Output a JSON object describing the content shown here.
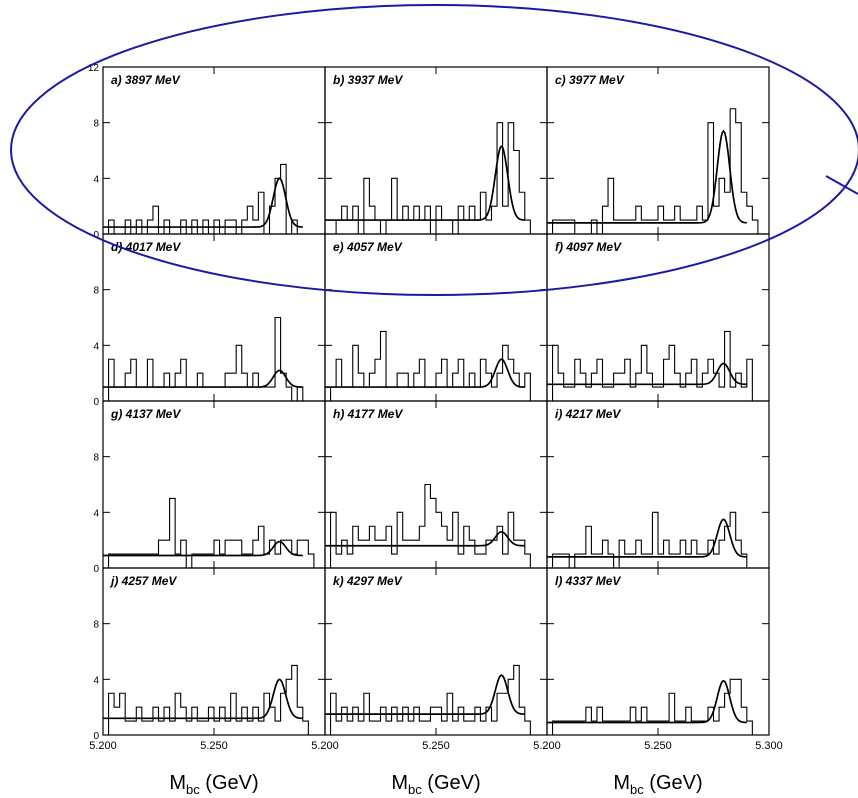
{
  "chart_data": {
    "type": "histogram-grid",
    "rows": 4,
    "cols": 3,
    "xlim": [
      5.2,
      5.3
    ],
    "ylim": [
      0,
      12
    ],
    "x_tick_labels": [
      [
        "5.200",
        "5.250",
        "5.200"
      ],
      [
        "5.250",
        "5.200",
        "5.250"
      ],
      [
        "5.300"
      ]
    ],
    "x_tick_values": [
      5.2,
      5.25,
      5.3
    ],
    "y_tick_labels": [
      "0",
      "4",
      "8",
      "12"
    ],
    "y_tick_values": [
      0,
      4,
      8,
      12
    ],
    "xlabel_main": "M",
    "xlabel_sub": "bc",
    "xlabel_unit": " (GeV)",
    "bin_width": 0.0025,
    "bin_start": 5.2,
    "annotation": "blue ellipse highlighting top row",
    "panels": [
      {
        "label": "a) 3897 MeV",
        "counts": [
          0,
          1,
          0,
          0,
          1,
          0,
          1,
          0,
          1,
          2,
          0,
          1,
          0,
          0,
          1,
          0,
          1,
          0,
          1,
          0,
          1,
          0,
          1,
          1,
          0,
          1,
          2,
          1,
          3,
          0,
          2,
          4,
          5,
          0,
          1,
          0,
          0,
          0,
          0,
          0
        ],
        "fit": {
          "bg": 0.5,
          "amp": 3.5,
          "mu": 5.2795,
          "sigma": 0.0028
        }
      },
      {
        "label": "b) 3937 MeV",
        "counts": [
          0,
          0,
          1,
          2,
          1,
          2,
          0,
          4,
          2,
          1,
          0,
          1,
          4,
          1,
          2,
          1,
          2,
          1,
          2,
          0,
          2,
          1,
          1,
          0,
          2,
          1,
          2,
          1,
          3,
          1,
          2,
          8,
          2,
          8,
          6,
          3,
          1,
          0,
          0,
          0
        ],
        "fit": {
          "bg": 1.0,
          "amp": 5.3,
          "mu": 5.2795,
          "sigma": 0.0028
        }
      },
      {
        "label": "c) 3977 MeV",
        "counts": [
          0,
          1,
          1,
          1,
          1,
          0,
          0,
          0,
          1,
          0,
          2,
          4,
          1,
          1,
          1,
          1,
          2,
          1,
          1,
          1,
          2,
          1,
          1,
          2,
          1,
          1,
          1,
          2,
          1,
          8,
          2,
          4,
          3,
          9,
          8,
          3,
          2,
          1,
          0,
          0
        ],
        "fit": {
          "bg": 0.8,
          "amp": 6.6,
          "mu": 5.2795,
          "sigma": 0.0028
        }
      },
      {
        "label": "d) 4017 MeV",
        "counts": [
          0,
          3,
          1,
          1,
          2,
          3,
          1,
          1,
          3,
          1,
          1,
          2,
          1,
          2,
          3,
          1,
          1,
          2,
          1,
          1,
          1,
          1,
          2,
          2,
          4,
          2,
          1,
          2,
          1,
          1,
          1,
          6,
          2,
          1,
          0,
          1,
          0,
          0,
          0,
          0
        ],
        "fit": {
          "bg": 1.0,
          "amp": 1.2,
          "mu": 5.2795,
          "sigma": 0.0028
        }
      },
      {
        "label": "e) 4057 MeV",
        "counts": [
          0,
          1,
          3,
          1,
          1,
          4,
          2,
          1,
          2,
          3,
          5,
          1,
          1,
          2,
          2,
          1,
          2,
          3,
          1,
          1,
          2,
          3,
          1,
          2,
          3,
          1,
          2,
          1,
          3,
          2,
          1,
          2,
          4,
          3,
          2,
          1,
          2,
          0,
          0,
          0
        ],
        "fit": {
          "bg": 1.0,
          "amp": 2.0,
          "mu": 5.2795,
          "sigma": 0.0028
        }
      },
      {
        "label": "f) 4097 MeV",
        "counts": [
          0,
          4,
          2,
          1,
          1,
          3,
          2,
          1,
          2,
          3,
          1,
          1,
          2,
          2,
          3,
          1,
          2,
          4,
          2,
          1,
          1,
          3,
          4,
          2,
          1,
          2,
          3,
          1,
          2,
          3,
          2,
          1,
          5,
          1,
          2,
          1,
          3,
          0,
          0,
          0
        ],
        "fit": {
          "bg": 1.2,
          "amp": 1.5,
          "mu": 5.2795,
          "sigma": 0.0028
        }
      },
      {
        "label": "g) 4137 MeV",
        "counts": [
          0,
          1,
          1,
          1,
          1,
          1,
          1,
          1,
          1,
          1,
          2,
          2,
          5,
          1,
          2,
          0,
          1,
          1,
          1,
          1,
          2,
          1,
          2,
          2,
          2,
          1,
          1,
          2,
          3,
          1,
          2,
          1,
          2,
          2,
          1,
          2,
          2,
          1,
          0,
          0
        ],
        "fit": {
          "bg": 0.9,
          "amp": 1.0,
          "mu": 5.2795,
          "sigma": 0.0028
        }
      },
      {
        "label": "h) 4177 MeV",
        "counts": [
          0,
          4,
          1,
          2,
          1,
          3,
          2,
          2,
          3,
          2,
          2,
          3,
          1,
          4,
          2,
          2,
          2,
          3,
          6,
          5,
          4,
          3,
          2,
          4,
          1,
          3,
          2,
          1,
          1,
          2,
          2,
          3,
          1,
          4,
          2,
          2,
          1,
          0,
          0,
          0
        ],
        "fit": {
          "bg": 1.6,
          "amp": 1.0,
          "mu": 5.2795,
          "sigma": 0.0028
        }
      },
      {
        "label": "i) 4217 MeV",
        "counts": [
          0,
          1,
          1,
          1,
          0,
          1,
          1,
          3,
          1,
          1,
          2,
          1,
          0,
          2,
          1,
          1,
          2,
          1,
          1,
          4,
          1,
          2,
          1,
          1,
          2,
          1,
          2,
          1,
          1,
          2,
          1,
          2,
          3,
          4,
          2,
          1,
          0,
          0,
          0,
          0
        ],
        "fit": {
          "bg": 0.8,
          "amp": 2.7,
          "mu": 5.2795,
          "sigma": 0.0028
        }
      },
      {
        "label": "j) 4257 MeV",
        "counts": [
          0,
          3,
          2,
          3,
          1,
          1,
          2,
          1,
          1,
          2,
          1,
          2,
          1,
          3,
          2,
          1,
          2,
          1,
          1,
          2,
          1,
          2,
          1,
          3,
          1,
          2,
          1,
          2,
          1,
          3,
          2,
          1,
          3,
          4,
          5,
          2,
          1,
          0,
          0,
          0
        ],
        "fit": {
          "bg": 1.2,
          "amp": 2.8,
          "mu": 5.2795,
          "sigma": 0.0028
        }
      },
      {
        "label": "k) 4297 MeV",
        "counts": [
          0,
          3,
          1,
          2,
          1,
          2,
          1,
          3,
          1,
          1,
          2,
          1,
          2,
          1,
          2,
          1,
          2,
          1,
          1,
          2,
          2,
          1,
          3,
          1,
          2,
          1,
          1,
          2,
          1,
          2,
          1,
          3,
          3,
          4,
          5,
          2,
          1,
          0,
          0,
          0
        ],
        "fit": {
          "bg": 1.5,
          "amp": 2.8,
          "mu": 5.2795,
          "sigma": 0.0028
        }
      },
      {
        "label": "l) 4337 MeV",
        "counts": [
          0,
          1,
          1,
          1,
          1,
          1,
          1,
          2,
          1,
          2,
          1,
          1,
          1,
          1,
          1,
          2,
          1,
          2,
          1,
          1,
          1,
          1,
          3,
          1,
          1,
          2,
          1,
          1,
          1,
          2,
          1,
          2,
          3,
          4,
          4,
          2,
          1,
          0,
          0,
          0
        ],
        "fit": {
          "bg": 0.9,
          "amp": 3.0,
          "mu": 5.2795,
          "sigma": 0.0028
        }
      }
    ]
  }
}
